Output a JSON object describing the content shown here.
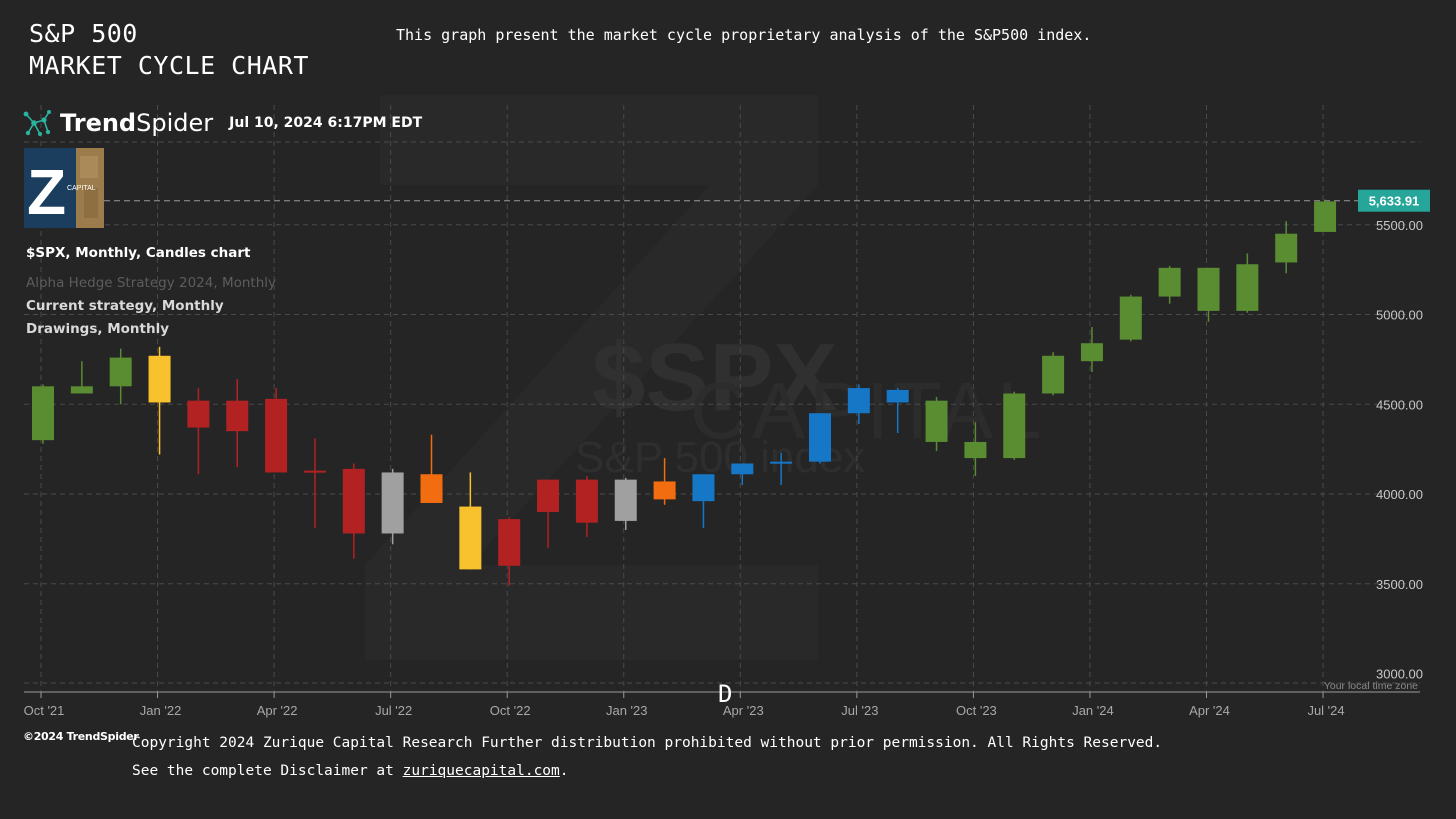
{
  "header": {
    "title_line1": "S&P 500",
    "title_line2": "MARKET CYCLE CHART",
    "subtitle": "This graph present the market cycle proprietary analysis of the S&P500 index."
  },
  "brand": {
    "name_bold": "Trend",
    "name_light": "Spider",
    "timestamp": "Jul 10, 2024 6:17PM EDT",
    "copyright": "©2024 TrendSpider",
    "logo_letter": "Z",
    "logo_text": "CAPITAL"
  },
  "legend": {
    "chart_label": "$SPX, Monthly, Candles chart",
    "strategy_1": "Alpha Hedge Strategy 2024, Monthly",
    "strategy_2": "Current strategy, Monthly",
    "drawings": "Drawings, Monthly"
  },
  "watermark": {
    "symbol": "$SPX",
    "name": "S&P 500 index",
    "brand": "CAPITAL"
  },
  "footer": {
    "line1": "Copyright 2024 Zurique Capital Research Further distribution prohibited without prior permission. All Rights Reserved.",
    "line2_prefix": "See the complete Disclaimer at ",
    "link_text": "zuriquecapital.com",
    "line2_suffix": "."
  },
  "marker": "D",
  "chart_data": {
    "type": "candlestick",
    "symbol": "$SPX",
    "interval": "Monthly",
    "ylim": [
      2950,
      5950
    ],
    "y_ticks": [
      3000,
      3500,
      4000,
      4500,
      5000,
      5500
    ],
    "y_tick_labels": [
      "3000.00",
      "3500.00",
      "4000.00",
      "4500.00",
      "5000.00",
      "5500.00"
    ],
    "x_tick_labels": [
      "Oct '21",
      "Jan '22",
      "Apr '22",
      "Jul '22",
      "Oct '22",
      "Jan '23",
      "Apr '23",
      "Jul '23",
      "Oct '23",
      "Jan '24",
      "Apr '24",
      "Jul '24"
    ],
    "last_price_label": "5,633.91",
    "last_price": 5633.91,
    "timezone_note": "Your local time zone",
    "grid": true,
    "colors": {
      "green": "#5a8c32",
      "red": "#b22222",
      "yellow": "#f8c22e",
      "gray": "#a0a0a0",
      "orange": "#f26d0f",
      "blue": "#1677c7",
      "price_tag": "#26a69a"
    },
    "candles": [
      {
        "date": "2021-10",
        "open": 4300,
        "high": 4610,
        "low": 4280,
        "close": 4600,
        "color": "green"
      },
      {
        "date": "2021-11",
        "open": 4600,
        "high": 4740,
        "low": 4560,
        "close": 4560,
        "color": "green"
      },
      {
        "date": "2021-12",
        "open": 4600,
        "high": 4810,
        "low": 4500,
        "close": 4760,
        "color": "green"
      },
      {
        "date": "2022-01",
        "open": 4770,
        "high": 4820,
        "low": 4220,
        "close": 4510,
        "color": "yellow"
      },
      {
        "date": "2022-02",
        "open": 4520,
        "high": 4590,
        "low": 4110,
        "close": 4370,
        "color": "red"
      },
      {
        "date": "2022-03",
        "open": 4520,
        "high": 4640,
        "low": 4150,
        "close": 4350,
        "color": "red"
      },
      {
        "date": "2022-04",
        "open": 4530,
        "high": 4590,
        "low": 4120,
        "close": 4120,
        "color": "red"
      },
      {
        "date": "2022-05",
        "open": 4120,
        "high": 4310,
        "low": 3810,
        "close": 4130,
        "color": "red"
      },
      {
        "date": "2022-06",
        "open": 4140,
        "high": 4170,
        "low": 3640,
        "close": 3780,
        "color": "red"
      },
      {
        "date": "2022-07",
        "open": 3780,
        "high": 4140,
        "low": 3720,
        "close": 4120,
        "color": "gray"
      },
      {
        "date": "2022-08",
        "open": 4110,
        "high": 4330,
        "low": 3950,
        "close": 3950,
        "color": "orange"
      },
      {
        "date": "2022-09",
        "open": 3930,
        "high": 4120,
        "low": 3580,
        "close": 3580,
        "color": "yellow"
      },
      {
        "date": "2022-10",
        "open": 3860,
        "high": 3870,
        "low": 3490,
        "close": 3600,
        "color": "red"
      },
      {
        "date": "2022-11",
        "open": 3900,
        "high": 4080,
        "low": 3700,
        "close": 4080,
        "color": "red"
      },
      {
        "date": "2022-12",
        "open": 4080,
        "high": 4100,
        "low": 3760,
        "close": 3840,
        "color": "red"
      },
      {
        "date": "2023-01",
        "open": 3850,
        "high": 4090,
        "low": 3800,
        "close": 4080,
        "color": "gray"
      },
      {
        "date": "2023-02",
        "open": 4070,
        "high": 4200,
        "low": 3940,
        "close": 3970,
        "color": "orange"
      },
      {
        "date": "2023-03",
        "open": 3960,
        "high": 4110,
        "low": 3810,
        "close": 4110,
        "color": "blue"
      },
      {
        "date": "2023-04",
        "open": 4110,
        "high": 4170,
        "low": 4050,
        "close": 4170,
        "color": "blue"
      },
      {
        "date": "2023-05",
        "open": 4170,
        "high": 4230,
        "low": 4050,
        "close": 4180,
        "color": "blue"
      },
      {
        "date": "2023-06",
        "open": 4180,
        "high": 4450,
        "low": 4170,
        "close": 4450,
        "color": "blue"
      },
      {
        "date": "2023-07",
        "open": 4450,
        "high": 4610,
        "low": 4390,
        "close": 4590,
        "color": "blue"
      },
      {
        "date": "2023-08",
        "open": 4580,
        "high": 4590,
        "low": 4340,
        "close": 4510,
        "color": "blue"
      },
      {
        "date": "2023-09",
        "open": 4520,
        "high": 4540,
        "low": 4240,
        "close": 4290,
        "color": "green"
      },
      {
        "date": "2023-10",
        "open": 4290,
        "high": 4400,
        "low": 4100,
        "close": 4200,
        "color": "green"
      },
      {
        "date": "2023-11",
        "open": 4200,
        "high": 4570,
        "low": 4190,
        "close": 4560,
        "color": "green"
      },
      {
        "date": "2023-12",
        "open": 4560,
        "high": 4790,
        "low": 4550,
        "close": 4770,
        "color": "green"
      },
      {
        "date": "2024-01",
        "open": 4740,
        "high": 4930,
        "low": 4680,
        "close": 4840,
        "color": "green"
      },
      {
        "date": "2024-02",
        "open": 4860,
        "high": 5110,
        "low": 4850,
        "close": 5100,
        "color": "green"
      },
      {
        "date": "2024-03",
        "open": 5100,
        "high": 5270,
        "low": 5060,
        "close": 5260,
        "color": "green"
      },
      {
        "date": "2024-04",
        "open": 5020,
        "high": 5260,
        "low": 4960,
        "close": 5260,
        "color": "green"
      },
      {
        "date": "2024-05",
        "open": 5020,
        "high": 5340,
        "low": 5010,
        "close": 5280,
        "color": "green"
      },
      {
        "date": "2024-06",
        "open": 5290,
        "high": 5520,
        "low": 5230,
        "close": 5450,
        "color": "green"
      },
      {
        "date": "2024-07",
        "open": 5460,
        "high": 5640,
        "low": 5460,
        "close": 5630,
        "color": "green"
      }
    ]
  }
}
